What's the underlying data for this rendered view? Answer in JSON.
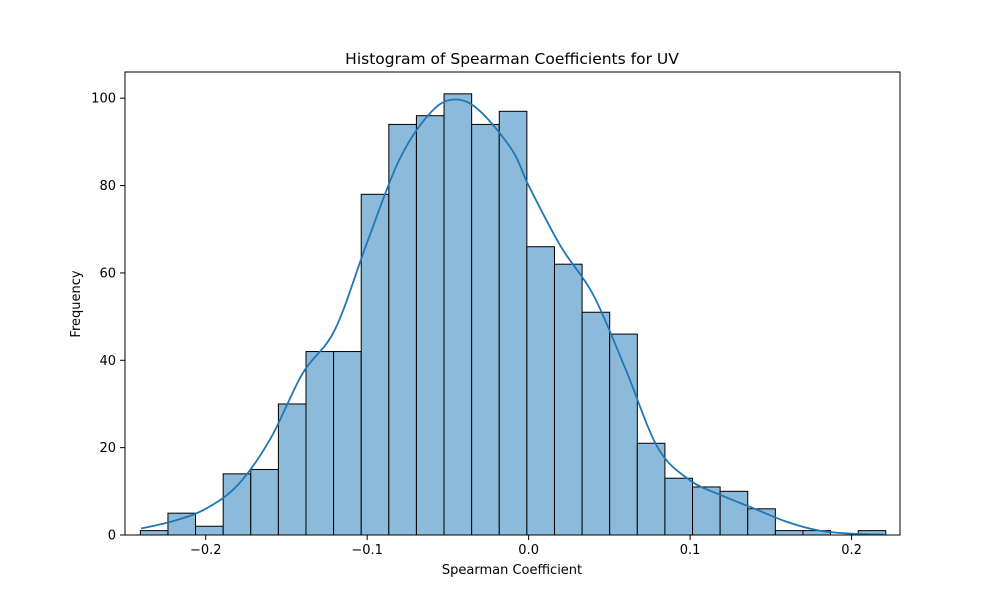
{
  "chart_data": {
    "type": "bar",
    "subtype": "histogram",
    "title": "Histogram of Spearman Coefficients for UV",
    "xlabel": "Spearman Coefficient",
    "ylabel": "Frequency",
    "xlim": [
      -0.25,
      0.23
    ],
    "ylim": [
      0,
      106
    ],
    "x_ticks": [
      -0.2,
      -0.1,
      0.0,
      0.1,
      0.2
    ],
    "x_tick_labels": [
      "−0.2",
      "−0.1",
      "0.0",
      "0.1",
      "0.2"
    ],
    "y_ticks": [
      0,
      20,
      40,
      60,
      80,
      100
    ],
    "y_tick_labels": [
      "0",
      "20",
      "40",
      "60",
      "80",
      "100"
    ],
    "bin_edges": [
      -0.2405,
      -0.2234,
      -0.2063,
      -0.1892,
      -0.1721,
      -0.155,
      -0.1379,
      -0.1208,
      -0.1037,
      -0.0866,
      -0.0695,
      -0.0524,
      -0.0353,
      -0.0182,
      -0.0011,
      0.016,
      0.0331,
      0.0502,
      0.0673,
      0.0844,
      0.1015,
      0.1186,
      0.1357,
      0.1528,
      0.1699,
      0.187,
      0.2041,
      0.2212
    ],
    "counts": [
      1,
      5,
      2,
      14,
      15,
      30,
      42,
      42,
      78,
      94,
      96,
      101,
      94,
      97,
      66,
      62,
      51,
      46,
      21,
      13,
      11,
      10,
      6,
      1,
      1,
      0,
      1
    ],
    "kde": {
      "x": [
        -0.24,
        -0.22,
        -0.2,
        -0.18,
        -0.16,
        -0.14,
        -0.12,
        -0.1,
        -0.08,
        -0.06,
        -0.045,
        -0.03,
        -0.01,
        0.0,
        0.02,
        0.04,
        0.06,
        0.08,
        0.1,
        0.12,
        0.14,
        0.16,
        0.18,
        0.2,
        0.22
      ],
      "y": [
        1.5,
        3.2,
        6.0,
        11.5,
        22.0,
        37.0,
        47.0,
        67.0,
        86.0,
        97.0,
        99.7,
        97.0,
        88.0,
        80.0,
        66.0,
        55.0,
        38.0,
        20.0,
        12.5,
        9.0,
        6.0,
        3.0,
        1.0,
        0.3,
        0.1
      ]
    },
    "colors": {
      "bar_fill": "#8cbada",
      "bar_edge": "#000000",
      "kde_line": "#1f77b4"
    },
    "grid": false,
    "legend": "none"
  }
}
